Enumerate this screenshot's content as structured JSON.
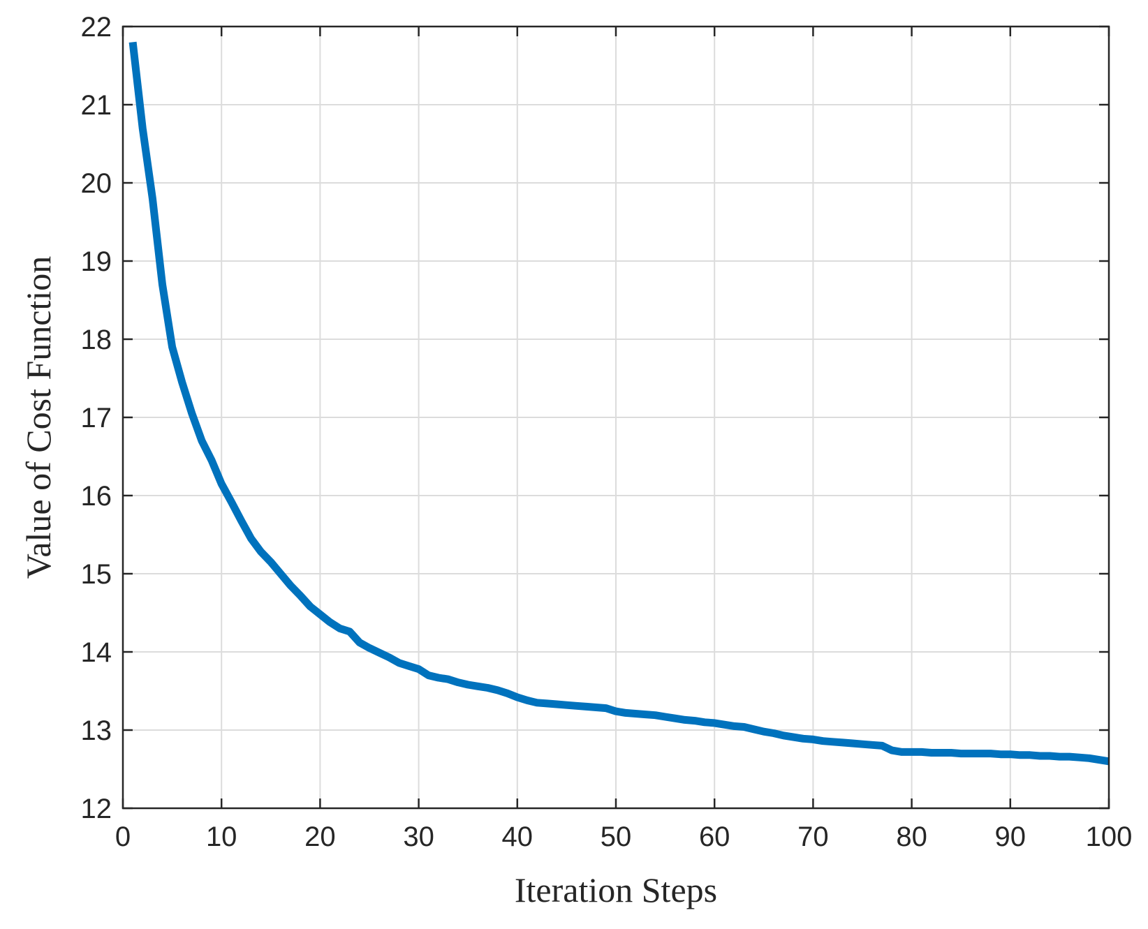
{
  "chart_data": {
    "type": "line",
    "title": "",
    "xlabel": "Iteration Steps",
    "ylabel": "Value of Cost Function",
    "xlim": [
      0,
      100
    ],
    "ylim": [
      12,
      22
    ],
    "xticks": [
      0,
      10,
      20,
      30,
      40,
      50,
      60,
      70,
      80,
      90,
      100
    ],
    "yticks": [
      12,
      13,
      14,
      15,
      16,
      17,
      18,
      19,
      20,
      21,
      22
    ],
    "grid": true,
    "legend": "none",
    "line_color": "#0072BD",
    "series": [
      {
        "x": [
          1,
          2,
          3,
          4,
          5,
          6,
          7,
          8,
          9,
          10,
          11,
          12,
          13,
          14,
          15,
          16,
          17,
          18,
          19,
          20,
          21,
          22,
          23,
          24,
          25,
          26,
          27,
          28,
          29,
          30,
          31,
          32,
          33,
          34,
          35,
          36,
          37,
          38,
          39,
          40,
          41,
          42,
          43,
          44,
          45,
          46,
          47,
          48,
          49,
          50,
          51,
          52,
          53,
          54,
          55,
          56,
          57,
          58,
          59,
          60,
          61,
          62,
          63,
          64,
          65,
          66,
          67,
          68,
          69,
          70,
          71,
          72,
          73,
          74,
          75,
          76,
          77,
          78,
          79,
          80,
          81,
          82,
          83,
          84,
          85,
          86,
          87,
          88,
          89,
          90,
          91,
          92,
          93,
          94,
          95,
          96,
          97,
          98,
          99,
          100
        ],
        "values": [
          21.8,
          20.7,
          19.8,
          18.7,
          17.9,
          17.45,
          17.05,
          16.7,
          16.45,
          16.15,
          15.92,
          15.68,
          15.45,
          15.28,
          15.15,
          15.0,
          14.85,
          14.72,
          14.58,
          14.48,
          14.38,
          14.3,
          14.26,
          14.12,
          14.05,
          13.99,
          13.93,
          13.86,
          13.82,
          13.78,
          13.7,
          13.67,
          13.65,
          13.61,
          13.58,
          13.56,
          13.54,
          13.51,
          13.47,
          13.42,
          13.38,
          13.35,
          13.34,
          13.33,
          13.32,
          13.31,
          13.3,
          13.29,
          13.28,
          13.24,
          13.22,
          13.21,
          13.2,
          13.19,
          13.17,
          13.15,
          13.13,
          13.12,
          13.1,
          13.09,
          13.07,
          13.05,
          13.04,
          13.01,
          12.98,
          12.96,
          12.93,
          12.91,
          12.89,
          12.88,
          12.86,
          12.85,
          12.84,
          12.83,
          12.82,
          12.81,
          12.8,
          12.74,
          12.72,
          12.72,
          12.72,
          12.71,
          12.71,
          12.71,
          12.7,
          12.7,
          12.7,
          12.7,
          12.69,
          12.69,
          12.68,
          12.68,
          12.67,
          12.67,
          12.66,
          12.66,
          12.65,
          12.64,
          12.62,
          12.6
        ]
      }
    ]
  }
}
